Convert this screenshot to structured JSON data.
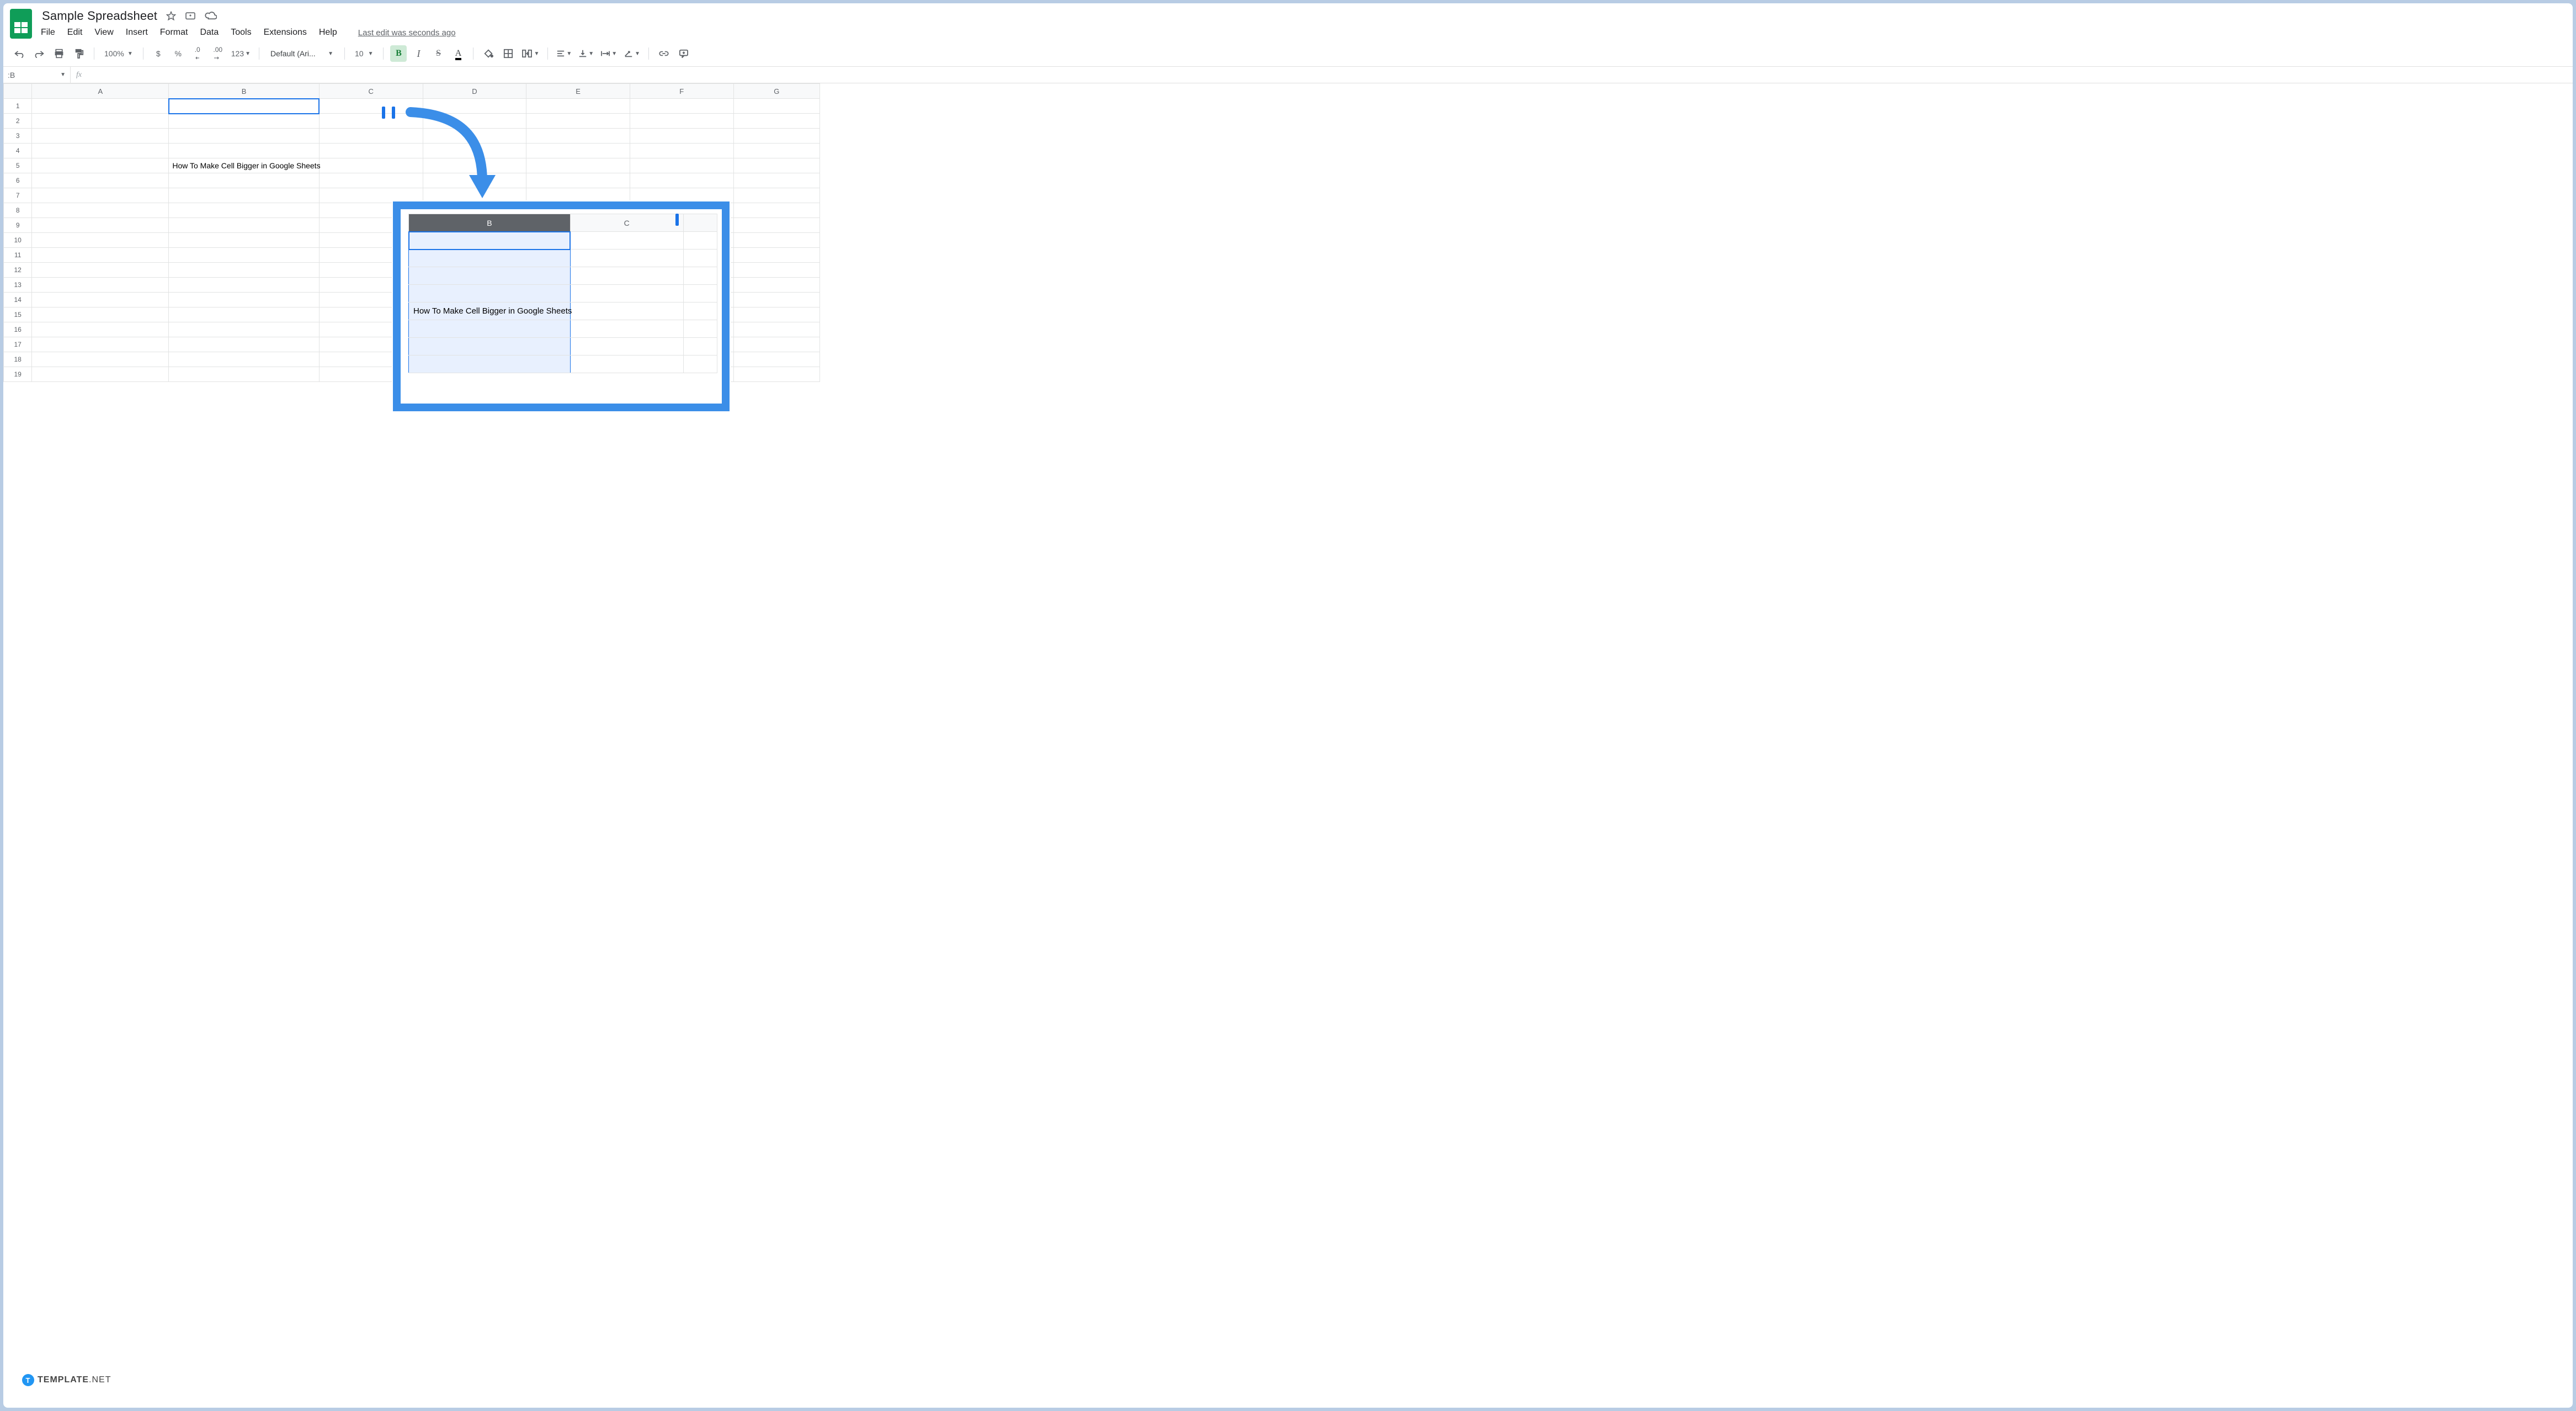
{
  "doc": {
    "title": "Sample Spreadsheet"
  },
  "menu": {
    "file": "File",
    "edit": "Edit",
    "view": "View",
    "insert": "Insert",
    "format": "Format",
    "data": "Data",
    "tools": "Tools",
    "extensions": "Extensions",
    "help": "Help",
    "last_edit": "Last edit was seconds ago"
  },
  "toolbar": {
    "zoom": "100%",
    "currency": "$",
    "percent": "%",
    "dec_dec": ".0",
    "inc_dec": ".00",
    "more_formats": "123",
    "font": "Default (Ari...",
    "font_size": "10",
    "bold": "B",
    "italic": "I",
    "strike": "S",
    "text_color": "A"
  },
  "fx": {
    "namebox": ":B",
    "fx_label": "fx"
  },
  "grid": {
    "columns": [
      "A",
      "B",
      "C",
      "D",
      "E",
      "F",
      "G"
    ],
    "rows": 19,
    "selected_col": "B",
    "cell_text": "How To Make Cell Bigger in Google Sheets",
    "cell_text_row": 5
  },
  "callout": {
    "columns": [
      "B",
      "C"
    ],
    "cell_text": "How To Make Cell Bigger in Google Sheets"
  },
  "colors": {
    "accent": "#1a73e8",
    "arrow": "#3b8ee8",
    "sel_fill": "#e8f0fe",
    "header_sel": "#5f6368",
    "bold_bg": "#ceead6",
    "bold_fg": "#188038"
  },
  "watermark": {
    "t": "T",
    "brand1": "TEMPLATE",
    "brand2": ".NET"
  }
}
